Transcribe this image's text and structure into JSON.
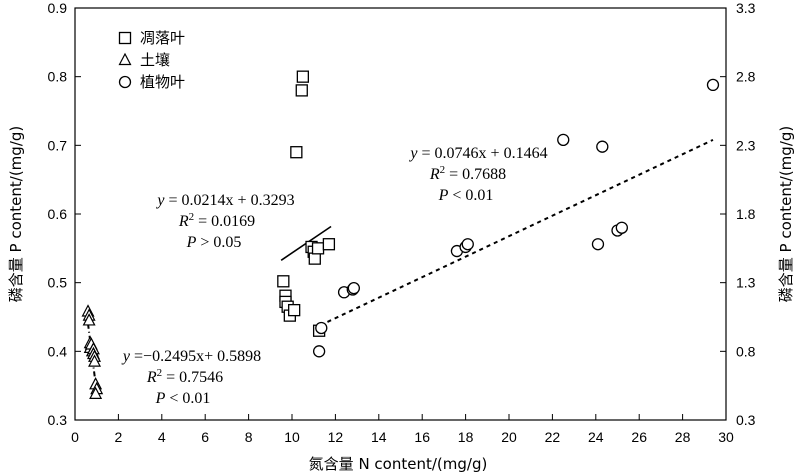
{
  "chart_data": {
    "type": "scatter",
    "xlabel": "氮含量 N content/(mg/g)",
    "ylabel_left": "磷含量 P content/(mg/g)",
    "ylabel_right": "磷含量 P content/(mg/g)",
    "xlim": [
      0,
      30
    ],
    "ylim_left": [
      0.3,
      0.9
    ],
    "ylim_right": [
      0.3,
      3.3
    ],
    "x_ticks": [
      "0",
      "2",
      "4",
      "6",
      "8",
      "10",
      "12",
      "14",
      "16",
      "18",
      "20",
      "22",
      "24",
      "26",
      "28",
      "30"
    ],
    "y_ticks_left": [
      "0.3",
      "0.4",
      "0.5",
      "0.6",
      "0.7",
      "0.8",
      "0.9"
    ],
    "y_ticks_right": [
      "0.3",
      "0.8",
      "1.3",
      "1.8",
      "2.3",
      "2.8",
      "3.3"
    ],
    "grid": false,
    "legend_position": "top-left",
    "series": [
      {
        "name": "凋落叶",
        "marker": "square",
        "axis": "left",
        "points": [
          [
            9.6,
            0.502
          ],
          [
            9.7,
            0.481
          ],
          [
            9.7,
            0.472
          ],
          [
            9.8,
            0.465
          ],
          [
            9.9,
            0.452
          ],
          [
            10.1,
            0.46
          ],
          [
            10.2,
            0.69
          ],
          [
            10.45,
            0.78
          ],
          [
            10.5,
            0.8
          ],
          [
            10.9,
            0.552
          ],
          [
            11.0,
            0.545
          ],
          [
            11.05,
            0.535
          ],
          [
            11.2,
            0.55
          ],
          [
            11.25,
            0.43
          ],
          [
            11.7,
            0.556
          ]
        ]
      },
      {
        "name": "土壤",
        "marker": "triangle",
        "axis": "left",
        "points": [
          [
            0.6,
            0.458
          ],
          [
            0.65,
            0.452
          ],
          [
            0.65,
            0.445
          ],
          [
            0.7,
            0.412
          ],
          [
            0.7,
            0.405
          ],
          [
            0.75,
            0.41
          ],
          [
            0.8,
            0.4
          ],
          [
            0.85,
            0.403
          ],
          [
            0.85,
            0.396
          ],
          [
            0.9,
            0.392
          ],
          [
            0.9,
            0.385
          ],
          [
            0.95,
            0.352
          ],
          [
            1.0,
            0.345
          ],
          [
            0.95,
            0.338
          ]
        ]
      },
      {
        "name": "植物叶",
        "marker": "circle",
        "axis": "right",
        "points": [
          [
            11.25,
            0.8
          ],
          [
            11.35,
            0.97
          ],
          [
            12.4,
            1.23
          ],
          [
            12.8,
            1.25
          ],
          [
            12.85,
            1.26
          ],
          [
            17.6,
            1.53
          ],
          [
            18.0,
            1.56
          ],
          [
            18.1,
            1.58
          ],
          [
            22.5,
            2.34
          ],
          [
            24.1,
            1.58
          ],
          [
            24.3,
            2.29
          ],
          [
            25.0,
            1.68
          ],
          [
            25.2,
            1.7
          ],
          [
            29.4,
            2.74
          ]
        ]
      }
    ],
    "trendlines": [
      {
        "series": "凋落叶",
        "style": "solid",
        "axis": "left",
        "slope": 0.0214,
        "intercept": 0.3293,
        "x_range": [
          9.5,
          11.8
        ]
      },
      {
        "series": "土壤",
        "style": "dashdot",
        "axis": "left",
        "slope": -0.2495,
        "intercept": 0.5898,
        "x_range": [
          0.6,
          1.0
        ]
      },
      {
        "series": "植物叶",
        "style": "dashed",
        "axis": "right",
        "slope": 0.0746,
        "intercept": 0.1464,
        "x_range": [
          11.3,
          29.4
        ]
      }
    ],
    "annotations": [
      {
        "id": "plant",
        "lines": [
          "y = 0.0746x + 0.1464",
          "R2 = 0.7688",
          "P < 0.01"
        ]
      },
      {
        "id": "litter",
        "lines": [
          "y = 0.0214x + 0.3293",
          "R2 = 0.0169",
          "P > 0.05"
        ]
      },
      {
        "id": "soil",
        "lines": [
          "y =−0.2495x+ 0.5898",
          "R2 = 0.7546",
          "P < 0.01"
        ]
      }
    ]
  }
}
